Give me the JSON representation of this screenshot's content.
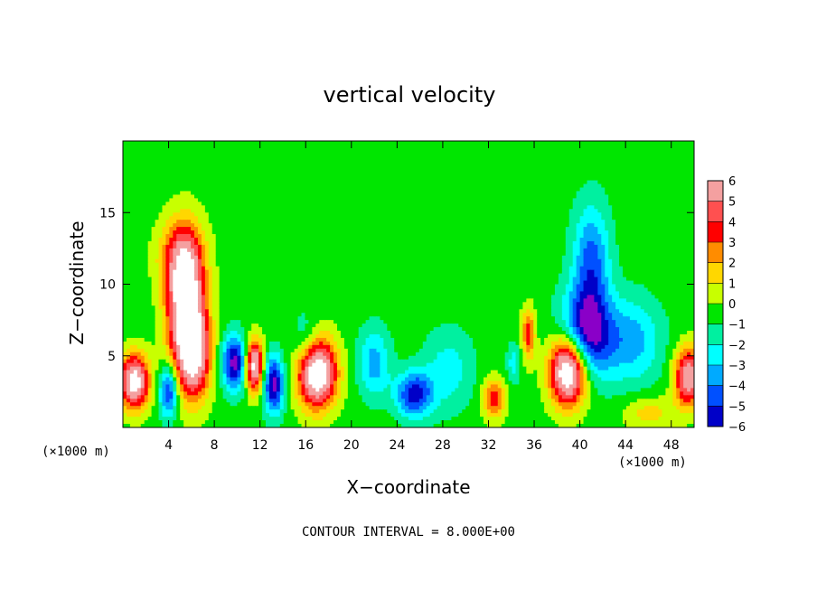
{
  "chart_data": {
    "type": "heatmap",
    "title": "vertical velocity",
    "xlabel": "X−coordinate",
    "ylabel": "Z−coordinate",
    "x_unit": "(×1000 m)",
    "x_unit_right": "(×1000 m)",
    "xlim": [
      0,
      50
    ],
    "ylim": [
      0,
      20
    ],
    "x_ticks": [
      "4",
      "8",
      "12",
      "16",
      "20",
      "24",
      "28",
      "32",
      "36",
      "40",
      "44",
      "48"
    ],
    "x_tick_values": [
      4,
      8,
      12,
      16,
      20,
      24,
      28,
      32,
      36,
      40,
      44,
      48
    ],
    "y_ticks": [
      "5",
      "10",
      "15"
    ],
    "y_tick_values": [
      5,
      10,
      15
    ],
    "colorbar_levels": [
      "6",
      "5",
      "4",
      "3",
      "2",
      "1",
      "0",
      "−1",
      "−2",
      "−3",
      "−4",
      "−5",
      "−6"
    ],
    "colorbar_colors": [
      "#f4a0a0",
      "#ff5050",
      "#ff0000",
      "#ff8c00",
      "#ffd700",
      "#c8ff00",
      "#00e600",
      "#00f0a0",
      "#00ffff",
      "#00aaff",
      "#0050ff",
      "#0000c8",
      "#8a00c8"
    ],
    "contour_note": "CONTOUR INTERVAL = 8.000E+00",
    "features": [
      {
        "x": 5.5,
        "z": 8.5,
        "value": 9,
        "sx": 1.6,
        "sz": 4.5
      },
      {
        "x": 6.3,
        "z": 5.0,
        "value": 6,
        "sx": 1.4,
        "sz": 3.0
      },
      {
        "x": 5.0,
        "z": 12.0,
        "value": 3,
        "sx": 2.0,
        "sz": 2.5
      },
      {
        "x": 1.0,
        "z": 3.2,
        "value": 8,
        "sx": 1.3,
        "sz": 1.9
      },
      {
        "x": 4.0,
        "z": 2.5,
        "value": -5,
        "sx": 0.8,
        "sz": 1.8
      },
      {
        "x": 9.8,
        "z": 4.5,
        "value": -6,
        "sx": 1.1,
        "sz": 1.9
      },
      {
        "x": 11.5,
        "z": 4.3,
        "value": 8,
        "sx": 0.8,
        "sz": 1.8
      },
      {
        "x": 13.2,
        "z": 3.0,
        "value": -6,
        "sx": 0.9,
        "sz": 2.0
      },
      {
        "x": 17.0,
        "z": 3.8,
        "value": 9,
        "sx": 1.7,
        "sz": 2.4
      },
      {
        "x": 16.0,
        "z": 6.0,
        "value": -2,
        "sx": 1.2,
        "sz": 2.0
      },
      {
        "x": 22.0,
        "z": 4.5,
        "value": -3,
        "sx": 1.4,
        "sz": 2.4
      },
      {
        "x": 25.5,
        "z": 2.3,
        "value": -5,
        "sx": 1.6,
        "sz": 1.6
      },
      {
        "x": 28.5,
        "z": 4.0,
        "value": -2,
        "sx": 2.2,
        "sz": 2.8
      },
      {
        "x": 32.5,
        "z": 2.0,
        "value": 4,
        "sx": 1.0,
        "sz": 1.4
      },
      {
        "x": 35.5,
        "z": 6.5,
        "value": 4,
        "sx": 0.6,
        "sz": 1.8
      },
      {
        "x": 34.2,
        "z": 4.5,
        "value": -2,
        "sx": 0.6,
        "sz": 1.4
      },
      {
        "x": 39.0,
        "z": 4.0,
        "value": 10,
        "sx": 1.6,
        "sz": 2.4
      },
      {
        "x": 40.5,
        "z": 6.5,
        "value": -6,
        "sx": 2.2,
        "sz": 3.0
      },
      {
        "x": 41.0,
        "z": 11.5,
        "value": -4,
        "sx": 1.6,
        "sz": 4.0
      },
      {
        "x": 44.5,
        "z": 6.0,
        "value": -3,
        "sx": 2.6,
        "sz": 3.0
      },
      {
        "x": 49.5,
        "z": 3.5,
        "value": 7,
        "sx": 1.2,
        "sz": 2.0
      },
      {
        "x": 46.0,
        "z": 1.0,
        "value": 2,
        "sx": 2.2,
        "sz": 1.2
      }
    ]
  }
}
